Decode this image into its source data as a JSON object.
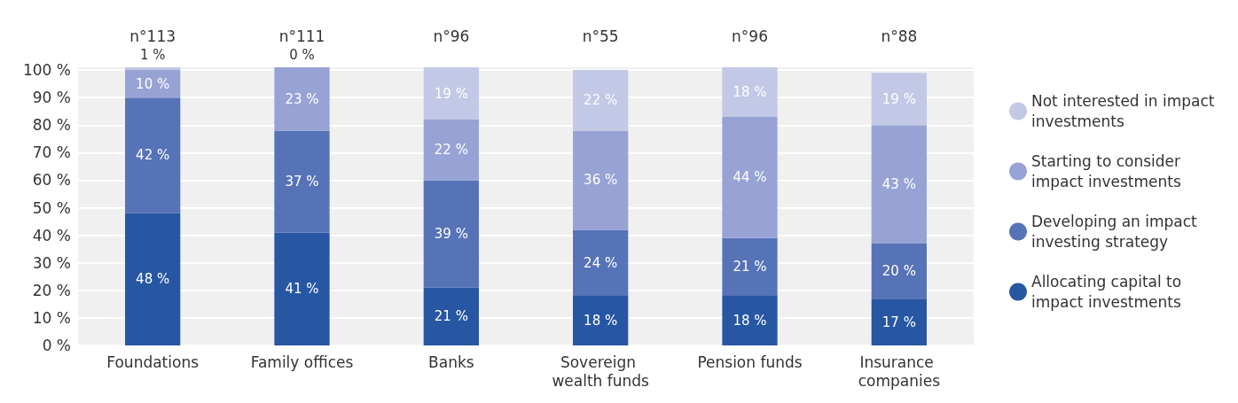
{
  "chart_data": {
    "type": "bar",
    "stacked": true,
    "categories": [
      "Foundations",
      "Family offices",
      "Banks",
      "Sovereign wealth funds",
      "Pension funds",
      "Insurance companies"
    ],
    "series": [
      {
        "name": "Allocating capital to impact investments",
        "color": "#2756a3",
        "values": [
          48,
          41,
          21,
          18,
          18,
          17
        ],
        "value_labels": [
          "48 %",
          "41 %",
          "21 %",
          "18 %",
          "18 %",
          "17 %"
        ]
      },
      {
        "name": "Developing an impact investing strategy",
        "color": "#5673b8",
        "values": [
          42,
          37,
          39,
          24,
          21,
          20
        ],
        "value_labels": [
          "42 %",
          "37 %",
          "39 %",
          "24 %",
          "21 %",
          "20 %"
        ]
      },
      {
        "name": "Starting to consider impact investments",
        "color": "#97a3d4",
        "values": [
          10,
          23,
          22,
          36,
          44,
          43
        ],
        "value_labels": [
          "10 %",
          "23 %",
          "22 %",
          "36 %",
          "44 %",
          "43 %"
        ]
      },
      {
        "name": "Not interested in impact investments",
        "color": "#c3c8e6",
        "values": [
          1,
          0,
          19,
          22,
          18,
          19
        ],
        "value_labels": [
          "1 %",
          "0 %",
          "19 %",
          "22 %",
          "18 %",
          "19 %"
        ]
      }
    ],
    "annotations": [
      "n°113",
      "n°111",
      "n°96",
      "n°55",
      "n°96",
      "n°88"
    ],
    "ylim": [
      0,
      101
    ],
    "yticks": [
      {
        "value": 0,
        "label": "0 %"
      },
      {
        "value": 10,
        "label": "10 %"
      },
      {
        "value": 20,
        "label": "20 %"
      },
      {
        "value": 30,
        "label": "30 %"
      },
      {
        "value": 40,
        "label": "40 %"
      },
      {
        "value": 50,
        "label": "50 %"
      },
      {
        "value": 60,
        "label": "60 %"
      },
      {
        "value": 70,
        "label": "70 %"
      },
      {
        "value": 80,
        "label": "80 %"
      },
      {
        "value": 90,
        "label": "90 %"
      },
      {
        "value": 100,
        "label": "100 %"
      }
    ],
    "grid": "y",
    "legend": "right",
    "marker": "circle"
  }
}
